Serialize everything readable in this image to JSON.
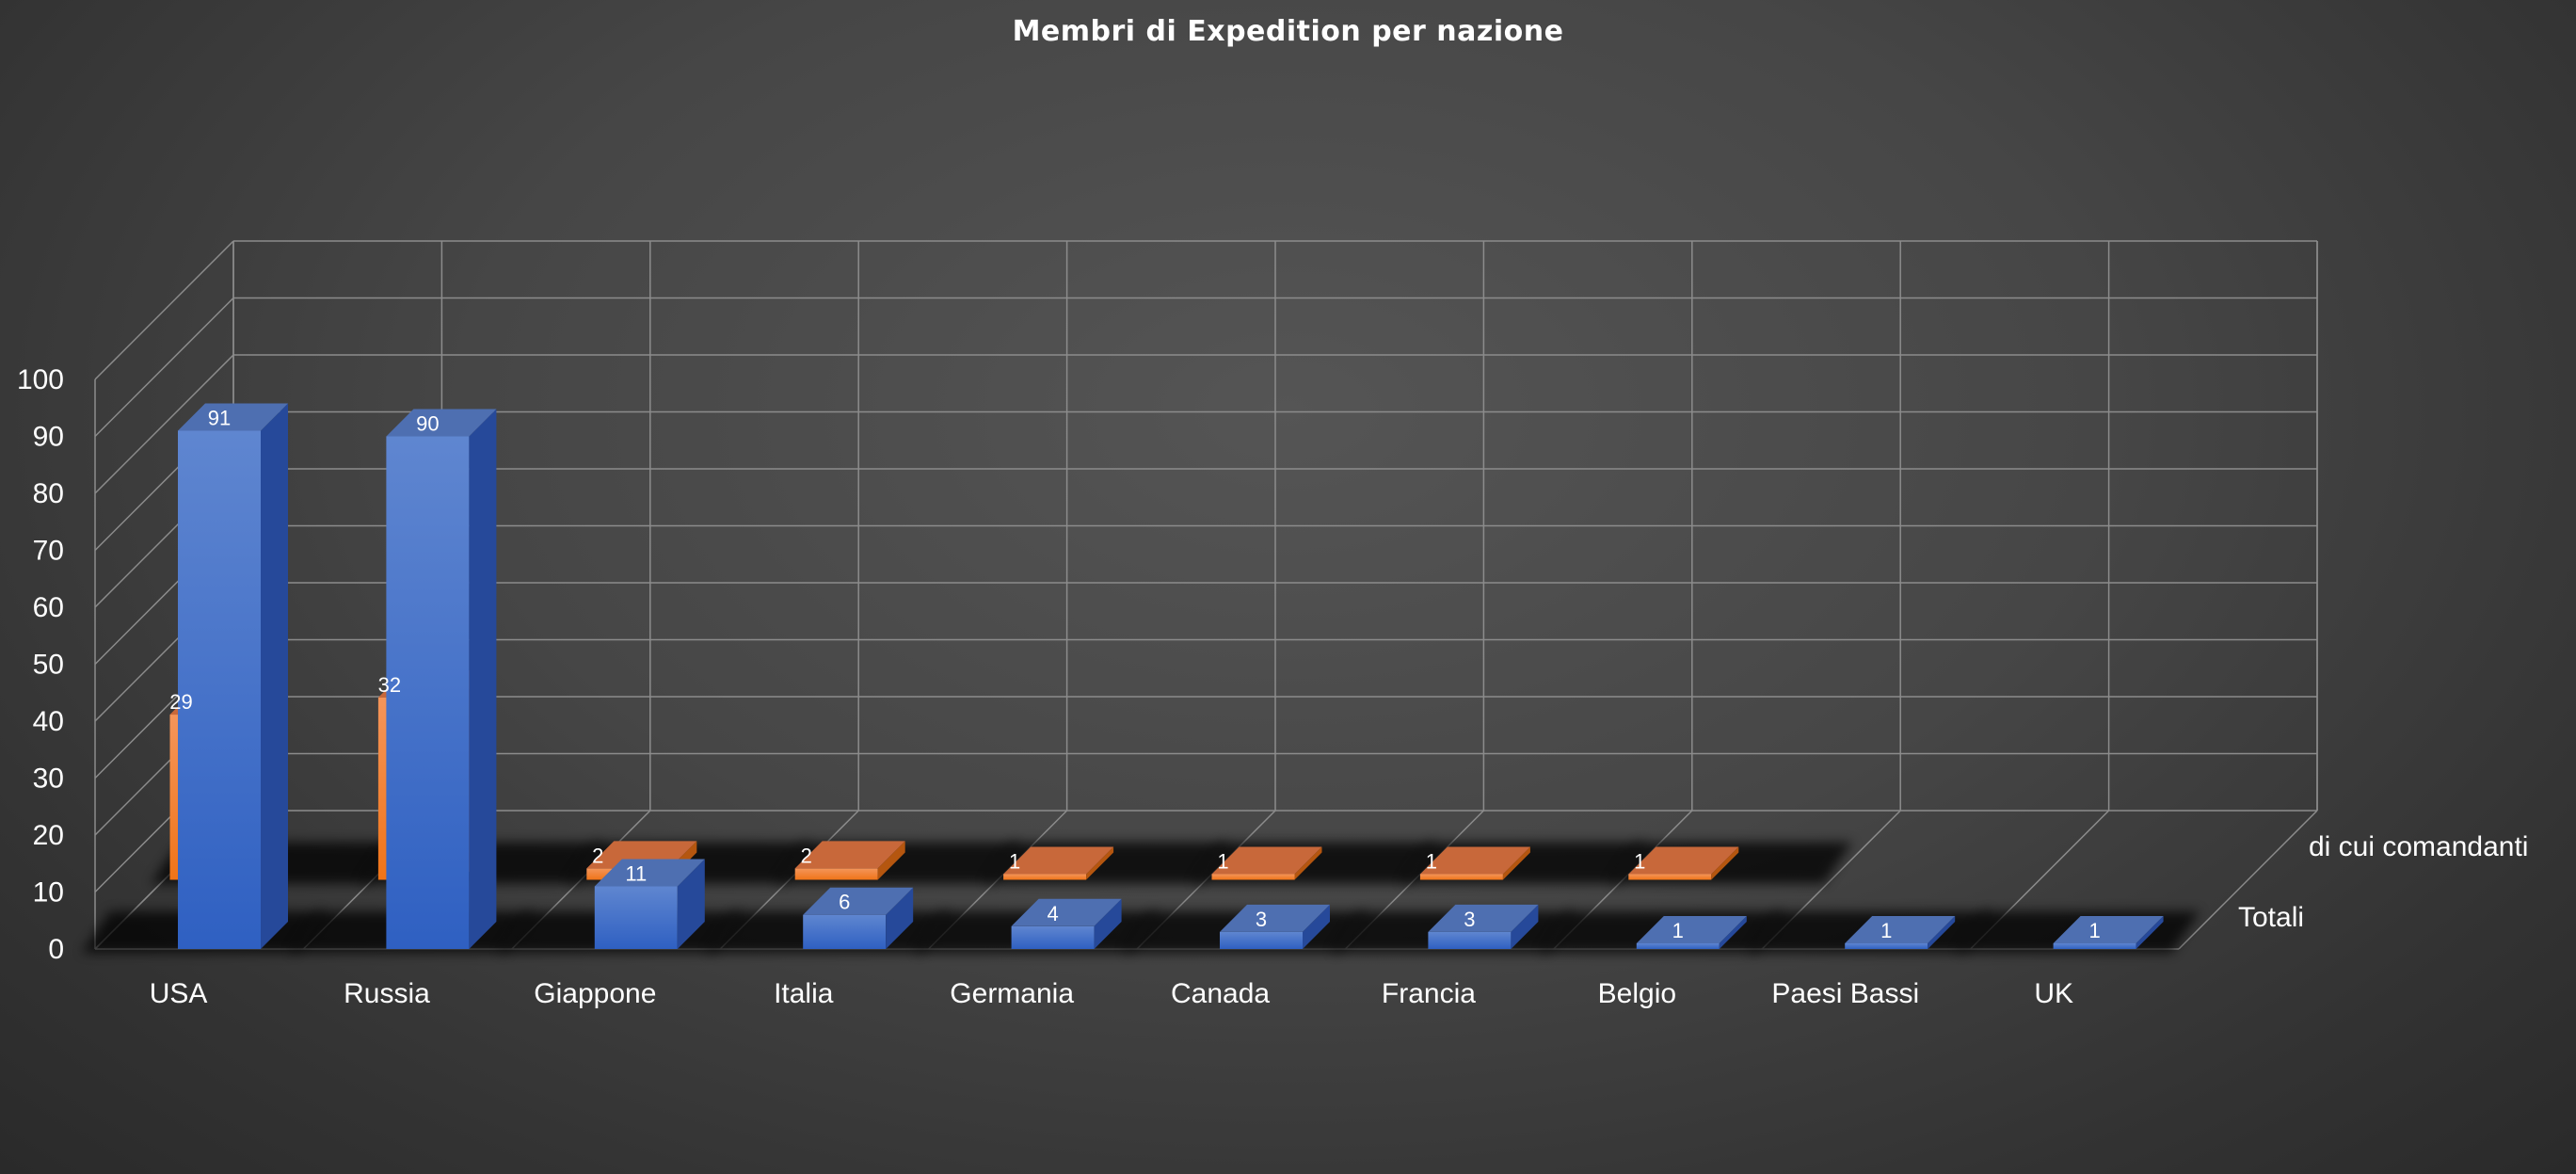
{
  "chart_data": {
    "type": "bar",
    "title": "Membri di Expedition per nazione",
    "xlabel": "",
    "ylabel": "",
    "ylim": [
      0,
      100
    ],
    "y_ticks": [
      0,
      10,
      20,
      30,
      40,
      50,
      60,
      70,
      80,
      90,
      100
    ],
    "grid": true,
    "categories": [
      "USA",
      "Russia",
      "Giappone",
      "Italia",
      "Germania",
      "Canada",
      "Francia",
      "Belgio",
      "Paesi Bassi",
      "UK"
    ],
    "series": [
      {
        "name": "Totali",
        "color": "#4472C4",
        "values": [
          91,
          90,
          11,
          6,
          4,
          3,
          3,
          1,
          1,
          1
        ]
      },
      {
        "name": "di cui comandanti",
        "color": "#ED7D31",
        "values": [
          29,
          32,
          2,
          2,
          1,
          1,
          1,
          1,
          null,
          null
        ]
      }
    ]
  }
}
